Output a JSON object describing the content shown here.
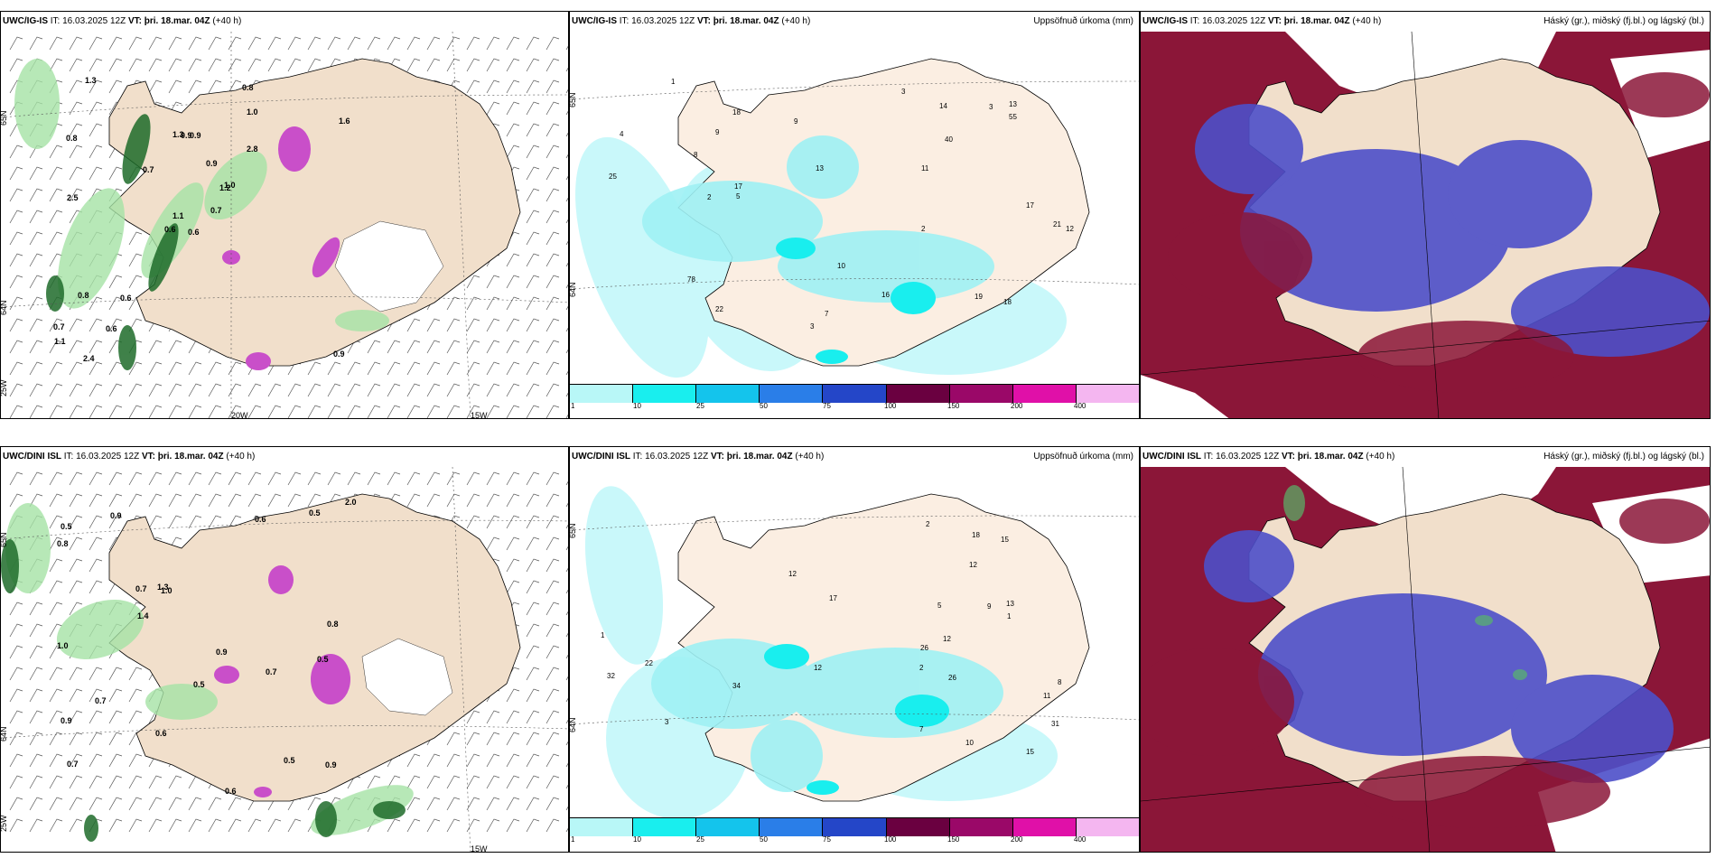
{
  "panels": [
    {
      "model": "UWC/IG-IS",
      "it": "IT: 16.03.2025 12Z",
      "vt_label": "VT:",
      "vt": "þri. 18.mar. 04Z",
      "lead": "(+40 h)",
      "right": ""
    },
    {
      "model": "UWC/IG-IS",
      "it": "IT: 16.03.2025 12Z",
      "vt_label": "VT:",
      "vt": "þri. 18.mar. 04Z",
      "lead": "(+40 h)",
      "right": "Uppsöfnuð úrkoma (mm)"
    },
    {
      "model": "UWC/IG-IS",
      "it": "IT: 16.03.2025 12Z",
      "vt_label": "VT:",
      "vt": "þri. 18.mar. 04Z",
      "lead": "(+40 h)",
      "right": "Háský (gr.), miðský (fj.bl.) og lágský (bl.)"
    },
    {
      "model": "UWC/DINI ISL",
      "it": "IT: 16.03.2025 12Z",
      "vt_label": "VT:",
      "vt": "þri. 18.mar. 04Z",
      "lead": "(+40 h)",
      "right": ""
    },
    {
      "model": "UWC/DINI ISL",
      "it": "IT: 16.03.2025 12Z",
      "vt_label": "VT:",
      "vt": "þri. 18.mar. 04Z",
      "lead": "(+40 h)",
      "right": "Uppsöfnuð úrkoma (mm)"
    },
    {
      "model": "UWC/DINI ISL",
      "it": "IT: 16.03.2025 12Z",
      "vt_label": "VT:",
      "vt": "þri. 18.mar. 04Z",
      "lead": "(+40 h)",
      "right": "Háský (gr.), miðský (fj.bl.) og lágský (bl.)"
    }
  ],
  "colorbar": {
    "labels": [
      "1",
      "10",
      "25",
      "50",
      "75",
      "100",
      "150",
      "200",
      "400"
    ],
    "colors": [
      "#b8f7f7",
      "#19eeee",
      "#14c4ec",
      "#2a7ee8",
      "#2446c8",
      "#6a0040",
      "#9a0868",
      "#e010a8",
      "#f4b6f0"
    ]
  },
  "grid_labels": {
    "top_left": [
      "65N",
      "64N",
      "25W",
      "20W",
      "15W"
    ],
    "top_mid": [
      "65N",
      "64N"
    ],
    "bot_left": [
      "65N",
      "64N",
      "25W",
      "15W"
    ],
    "bot_mid": [
      "65N",
      "64N"
    ]
  },
  "colors": {
    "land": "#f1dfcb",
    "land_light": "#fbeee2",
    "precip_cyan": "#9ff1f4",
    "precip_light": "#c9f8fa",
    "cloud_high": "#8b1638",
    "cloud_mid": "#4d4fc9",
    "green_dark": "#1e6b2a",
    "green_light": "#a6e3a6",
    "magenta": "#c94fc9"
  },
  "precip_labels_top": [
    "4",
    "9",
    "11",
    "7",
    "3",
    "3",
    "2",
    "5",
    "13",
    "12",
    "21",
    "18",
    "40",
    "78",
    "25",
    "22",
    "17",
    "9",
    "18",
    "16",
    "19",
    "17",
    "13",
    "10",
    "14",
    "8",
    "55",
    "3",
    "1",
    "2"
  ],
  "precip_labels_bot": [
    "2",
    "8",
    "9",
    "11",
    "7",
    "12",
    "13",
    "17",
    "31",
    "10",
    "12",
    "26",
    "32",
    "26",
    "34",
    "15",
    "15",
    "22",
    "18",
    "12",
    "12",
    "1",
    "5",
    "2",
    "1",
    "3"
  ],
  "accum_labels_top_left": [
    "0.6",
    "0.8",
    "1.1",
    "0.7",
    "1.2",
    "0.6",
    "0.8",
    "0.9",
    "1.0",
    "0.7",
    "1.3",
    "0.9",
    "2.5",
    "1.6",
    "0.6",
    "2.8",
    "2.4",
    "1.3",
    "0.9",
    "0.8",
    "0.7",
    "1.1",
    "0.6",
    "0.9",
    "1.0"
  ],
  "accum_labels_bot_left": [
    "0.7",
    "0.5",
    "0.7",
    "0.9",
    "1.0",
    "0.5",
    "0.9",
    "0.6",
    "0.7",
    "0.6",
    "0.8",
    "1.0",
    "0.5",
    "0.9",
    "0.6",
    "0.8",
    "0.5",
    "0.9",
    "1.3",
    "0.7",
    "2.0",
    "0.5",
    "1.4"
  ]
}
